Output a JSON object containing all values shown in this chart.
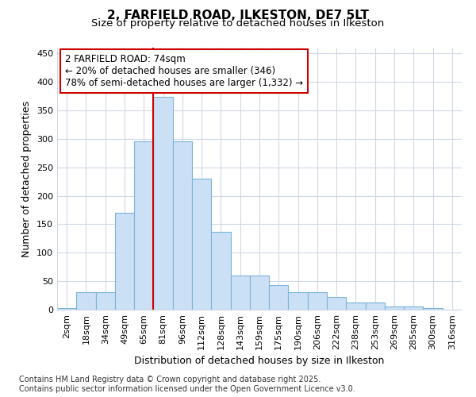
{
  "title_line1": "2, FARFIELD ROAD, ILKESTON, DE7 5LT",
  "title_line2": "Size of property relative to detached houses in Ilkeston",
  "xlabel": "Distribution of detached houses by size in Ilkeston",
  "ylabel": "Number of detached properties",
  "bar_labels": [
    "2sqm",
    "18sqm",
    "34sqm",
    "49sqm",
    "65sqm",
    "81sqm",
    "96sqm",
    "112sqm",
    "128sqm",
    "143sqm",
    "159sqm",
    "175sqm",
    "190sqm",
    "206sqm",
    "222sqm",
    "238sqm",
    "253sqm",
    "269sqm",
    "285sqm",
    "300sqm",
    "316sqm"
  ],
  "bar_values": [
    3,
    30,
    30,
    170,
    295,
    373,
    296,
    230,
    136,
    60,
    60,
    43,
    30,
    30,
    23,
    13,
    13,
    5,
    5,
    3,
    0
  ],
  "bar_color": "#cce0f5",
  "bar_edgecolor": "#7ab4d8",
  "annotation_text": "2 FARFIELD ROAD: 74sqm\n← 20% of detached houses are smaller (346)\n78% of semi-detached houses are larger (1,332) →",
  "annotation_box_facecolor": "#ffffff",
  "annotation_box_edgecolor": "#cc0000",
  "vline_color": "#cc0000",
  "vline_x_index": 5,
  "ylim": [
    0,
    460
  ],
  "yticks": [
    0,
    50,
    100,
    150,
    200,
    250,
    300,
    350,
    400,
    450
  ],
  "background_color": "#ffffff",
  "plot_bg_color": "#ffffff",
  "grid_color": "#d0d8e8",
  "footer_text": "Contains HM Land Registry data © Crown copyright and database right 2025.\nContains public sector information licensed under the Open Government Licence v3.0.",
  "title_fontsize": 11,
  "subtitle_fontsize": 9.5,
  "annotation_fontsize": 8.5,
  "axis_label_fontsize": 9,
  "tick_fontsize": 8,
  "footer_fontsize": 7
}
